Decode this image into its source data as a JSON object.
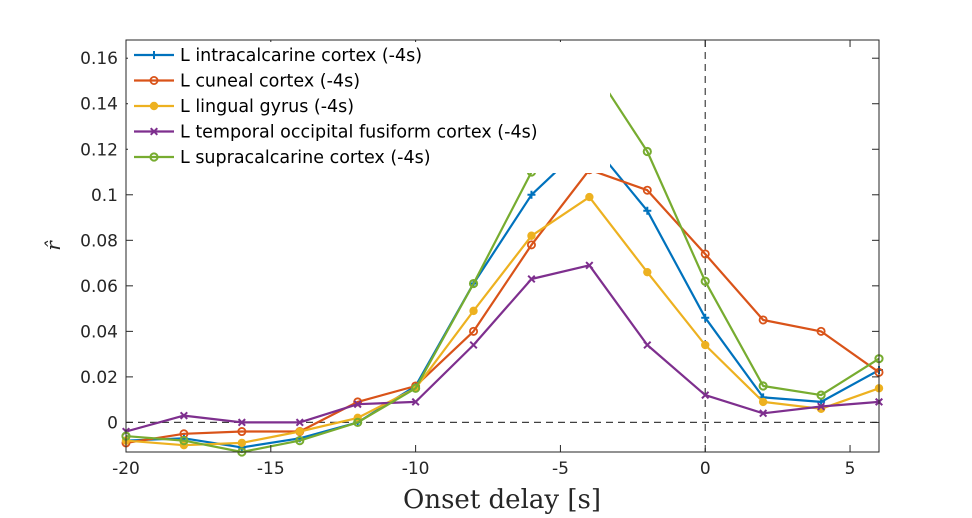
{
  "chart_data": {
    "type": "line",
    "xlabel": "Onset delay [s]",
    "ylabel": "r̂",
    "xlim": [
      -20,
      6
    ],
    "ylim": [
      -0.013,
      0.168
    ],
    "xticks": [
      -20,
      -15,
      -10,
      -5,
      0,
      5
    ],
    "xtick_labels": [
      "-20",
      "-15",
      "-10",
      "-5",
      "0",
      "5"
    ],
    "yticks": [
      0,
      0.02,
      0.04,
      0.06,
      0.08,
      0.1,
      0.12,
      0.14,
      0.16
    ],
    "ytick_labels": [
      "0",
      "0.02",
      "0.04",
      "0.06",
      "0.08",
      "0.1",
      "0.12",
      "0.14",
      "0.16"
    ],
    "reference_lines": {
      "y": 0,
      "x": 0,
      "style": "dashed"
    },
    "legend_position": "top-left",
    "grid": false,
    "x": [
      -20,
      -18,
      -16,
      -14,
      -12,
      -10,
      -8,
      -6,
      -4,
      -2,
      0,
      2,
      4,
      6
    ],
    "series": [
      {
        "name": "L intracalcarine cortex (-4s)",
        "color": "#0072BD",
        "marker": "plus",
        "values": [
          -0.008,
          -0.007,
          -0.011,
          -0.007,
          0.0,
          0.016,
          0.061,
          0.1,
          0.124,
          0.093,
          0.046,
          0.011,
          0.009,
          0.023
        ]
      },
      {
        "name": "L cuneal cortex (-4s)",
        "color": "#D95319",
        "marker": "circle",
        "values": [
          -0.009,
          -0.005,
          -0.004,
          -0.004,
          0.009,
          0.016,
          0.04,
          0.078,
          0.111,
          0.102,
          0.074,
          0.045,
          0.04,
          0.022
        ]
      },
      {
        "name": "L lingual gyrus (-4s)",
        "color": "#EDB120",
        "marker": "filled-circle",
        "values": [
          -0.008,
          -0.01,
          -0.009,
          -0.004,
          0.002,
          0.015,
          0.049,
          0.082,
          0.099,
          0.066,
          0.034,
          0.009,
          0.006,
          0.015
        ]
      },
      {
        "name": "L temporal occipital fusiform cortex (-4s)",
        "color": "#7E2F8E",
        "marker": "cross",
        "values": [
          -0.004,
          0.003,
          0.0,
          0.0,
          0.008,
          0.009,
          0.034,
          0.063,
          0.069,
          0.034,
          0.012,
          0.004,
          0.007,
          0.009
        ]
      },
      {
        "name": "L supracalcarine cortex (-4s)",
        "color": "#77AC30",
        "marker": "square",
        "values": [
          -0.006,
          -0.008,
          -0.013,
          -0.008,
          0.0,
          0.015,
          0.061,
          0.11,
          0.158,
          0.119,
          0.062,
          0.016,
          0.012,
          0.028
        ]
      }
    ]
  }
}
